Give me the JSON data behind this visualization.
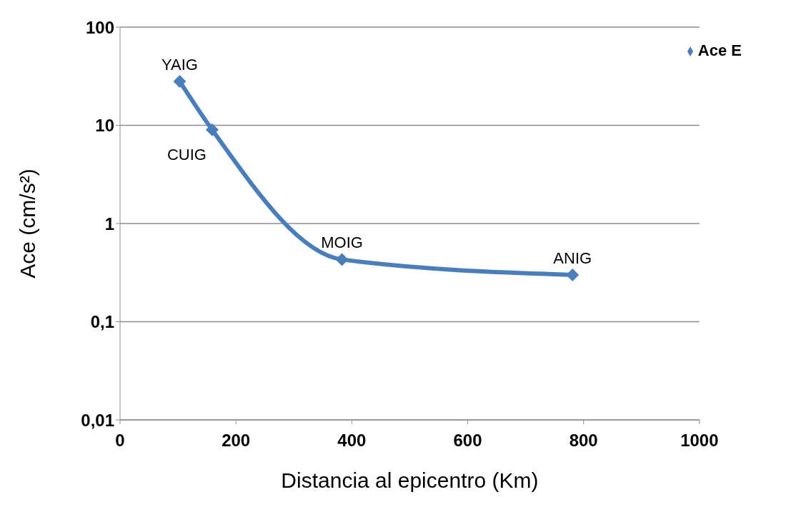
{
  "chart_data": {
    "type": "line",
    "xlabel": "Distancia al epicentro (Km)",
    "ylabel": "Ace (cm/s²)",
    "x": [
      103,
      159,
      383,
      781
    ],
    "series": [
      {
        "name": "Ace E",
        "color": "#4a7ebb",
        "values": [
          28,
          9,
          0.43,
          0.3
        ]
      }
    ],
    "xlim": [
      0,
      1000
    ],
    "xticks": [
      0,
      200,
      400,
      600,
      800,
      1000
    ],
    "ylim": [
      0.01,
      100
    ],
    "yticks": [
      {
        "value": 0.01,
        "label": "0,01"
      },
      {
        "value": 0.1,
        "label": "0,1"
      },
      1,
      10,
      100
    ],
    "log": "y",
    "grid": "y",
    "legend": "top right",
    "marker": "diamond",
    "line_style": "solid",
    "annotations": [
      {
        "text": "YAIG",
        "x": 103,
        "y": 28
      },
      {
        "text": "CUIG",
        "x": 159,
        "y": 9
      },
      {
        "text": "MOIG",
        "x": 383,
        "y": 0.43
      },
      {
        "text": "ANIG",
        "x": 781,
        "y": 0.3
      }
    ]
  }
}
